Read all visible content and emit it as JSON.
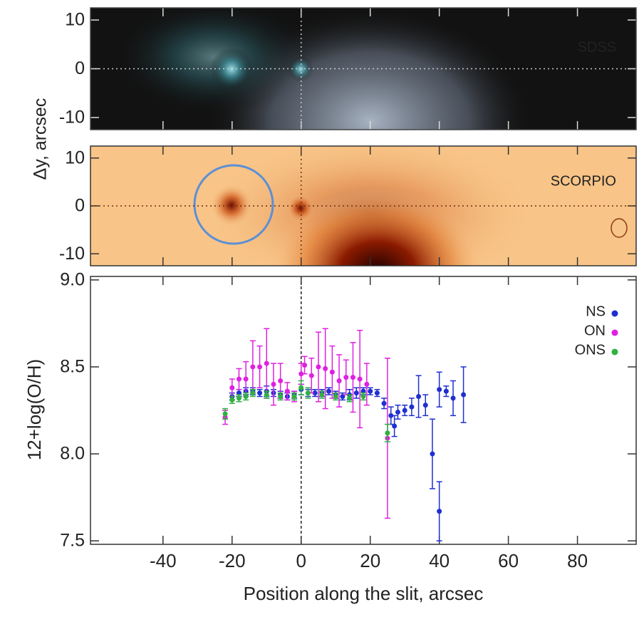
{
  "chart_data": [
    {
      "type": "image",
      "title": "SDSS",
      "ylabel": "Δy, arcsec",
      "ylim": [
        -12.5,
        12.5
      ],
      "yticks": [
        -10,
        0,
        10
      ]
    },
    {
      "type": "image",
      "title": "SCORPIO",
      "ylim": [
        -12.5,
        12.5
      ],
      "yticks": [
        -10,
        0,
        10
      ]
    },
    {
      "type": "scatter",
      "xlabel": "Position along the slit, arcsec",
      "ylabel": "12+log(O/H)",
      "xlim": [
        -61,
        97
      ],
      "xticks": [
        -40,
        -20,
        0,
        20,
        40,
        60,
        80
      ],
      "ylim": [
        7.48,
        9.02
      ],
      "yticks": [
        7.5,
        {
          "value": 8,
          "label": "8.0"
        },
        8.5,
        {
          "value": 9,
          "label": "9.0"
        }
      ],
      "legend": "upper right",
      "series": [
        {
          "name": "NS",
          "color": "#1f2fd0",
          "x": [
            -20,
            -18,
            -16,
            -14,
            -12,
            -10,
            -8,
            -6,
            -4,
            -2,
            0,
            2,
            4,
            6,
            8,
            10,
            12,
            14,
            16,
            18,
            20,
            22,
            24,
            26,
            27,
            28,
            30,
            32,
            34,
            36,
            38,
            40,
            40,
            42,
            44,
            47
          ],
          "values": [
            8.33,
            8.35,
            8.36,
            8.36,
            8.35,
            8.36,
            8.35,
            8.34,
            8.33,
            8.34,
            8.37,
            8.35,
            8.35,
            8.35,
            8.36,
            8.34,
            8.33,
            8.34,
            8.35,
            8.36,
            8.36,
            8.35,
            8.29,
            8.22,
            8.16,
            8.24,
            8.25,
            8.27,
            8.33,
            8.28,
            8.0,
            8.37,
            7.67,
            8.36,
            8.32,
            8.34
          ],
          "errors": [
            0.02,
            0.02,
            0.02,
            0.02,
            0.02,
            0.03,
            0.02,
            0.02,
            0.02,
            0.02,
            0.03,
            0.02,
            0.02,
            0.02,
            0.02,
            0.02,
            0.02,
            0.03,
            0.03,
            0.02,
            0.02,
            0.02,
            0.03,
            0.05,
            0.06,
            0.04,
            0.03,
            0.05,
            0.12,
            0.06,
            0.2,
            0.1,
            0.17,
            0.03,
            0.1,
            0.16
          ]
        },
        {
          "name": "ON",
          "color": "#e020e0",
          "x": [
            -22,
            -20,
            -18,
            -16,
            -14,
            -12,
            -10,
            -8,
            -6,
            -4,
            -2,
            0,
            1,
            3,
            5,
            7,
            9,
            11,
            13,
            15,
            17,
            19,
            25
          ],
          "values": [
            8.21,
            8.38,
            8.43,
            8.43,
            8.5,
            8.5,
            8.52,
            8.4,
            8.42,
            8.36,
            8.33,
            8.46,
            8.51,
            8.45,
            8.5,
            8.49,
            8.47,
            8.42,
            8.44,
            8.44,
            8.43,
            8.4,
            8.09
          ],
          "errors": [
            0.04,
            0.05,
            0.06,
            0.1,
            0.15,
            0.12,
            0.2,
            0.12,
            0.1,
            0.05,
            0.03,
            0.06,
            0.05,
            0.1,
            0.2,
            0.23,
            0.15,
            0.15,
            0.1,
            0.2,
            0.28,
            0.12,
            0.46
          ]
        },
        {
          "name": "ONS",
          "color": "#30b040",
          "x": [
            -22,
            -20,
            -18,
            -16,
            -14,
            -10,
            -6,
            -2,
            0,
            2,
            6,
            10,
            14,
            18,
            25
          ],
          "values": [
            8.23,
            8.31,
            8.32,
            8.33,
            8.35,
            8.34,
            8.33,
            8.33,
            8.38,
            8.35,
            8.34,
            8.33,
            8.32,
            8.33,
            8.12
          ],
          "errors": [
            0.03,
            0.02,
            0.02,
            0.02,
            0.02,
            0.02,
            0.02,
            0.02,
            0.04,
            0.03,
            0.02,
            0.02,
            0.02,
            0.02,
            0.05
          ]
        }
      ]
    }
  ]
}
